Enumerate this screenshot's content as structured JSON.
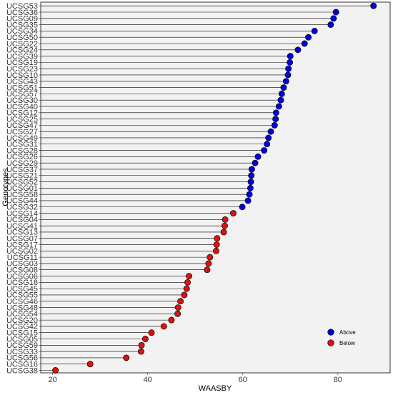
{
  "chart_data": {
    "type": "scatter",
    "style": "lollipop",
    "xlabel": "WAASBY",
    "ylabel": "Genotypes",
    "xlim": [
      17.5,
      91
    ],
    "x_ticks": [
      20,
      40,
      60,
      80
    ],
    "grid": false,
    "legend_position": "bottom-right",
    "colors": {
      "Above": "#0000dd",
      "Below": "#dd1111"
    },
    "series": [
      {
        "name": "Above",
        "points": [
          {
            "genotype": "UCSG53",
            "value": 87.5
          },
          {
            "genotype": "UCSG36",
            "value": 79.6
          },
          {
            "genotype": "UCSG09",
            "value": 79.1
          },
          {
            "genotype": "UCSG35",
            "value": 78.5
          },
          {
            "genotype": "UCSG34",
            "value": 75.1
          },
          {
            "genotype": "UCSG50",
            "value": 73.8
          },
          {
            "genotype": "UCSG22",
            "value": 73.0
          },
          {
            "genotype": "UCSG24",
            "value": 71.6
          },
          {
            "genotype": "UCSG39",
            "value": 70.0
          },
          {
            "genotype": "UCSG19",
            "value": 69.9
          },
          {
            "genotype": "UCSG23",
            "value": 69.6
          },
          {
            "genotype": "UCSG10",
            "value": 69.5
          },
          {
            "genotype": "UCSG43",
            "value": 69.1
          },
          {
            "genotype": "UCSG51",
            "value": 68.6
          },
          {
            "genotype": "UCSG57",
            "value": 68.2
          },
          {
            "genotype": "UCSG30",
            "value": 68.0
          },
          {
            "genotype": "UCSG40",
            "value": 67.6
          },
          {
            "genotype": "UCSG12",
            "value": 67.0
          },
          {
            "genotype": "UCSG25",
            "value": 66.9
          },
          {
            "genotype": "UCSG47",
            "value": 66.7
          },
          {
            "genotype": "UCSG27",
            "value": 65.9
          },
          {
            "genotype": "UCSG49",
            "value": 65.4
          },
          {
            "genotype": "UCSG31",
            "value": 65.1
          },
          {
            "genotype": "UCSG28",
            "value": 64.5
          },
          {
            "genotype": "UCSG26",
            "value": 63.2
          },
          {
            "genotype": "UCSG29",
            "value": 62.6
          },
          {
            "genotype": "UCSG37",
            "value": 61.9
          },
          {
            "genotype": "UCSG21",
            "value": 61.8
          },
          {
            "genotype": "UCSG52",
            "value": 61.7
          },
          {
            "genotype": "UCSG01",
            "value": 61.6
          },
          {
            "genotype": "UCSG58",
            "value": 61.4
          },
          {
            "genotype": "UCSG44",
            "value": 61.1
          },
          {
            "genotype": "UCSG32",
            "value": 59.9
          }
        ]
      },
      {
        "name": "Below",
        "points": [
          {
            "genotype": "UCSG14",
            "value": 58.0
          },
          {
            "genotype": "UCSG04",
            "value": 56.3
          },
          {
            "genotype": "UCSG41",
            "value": 56.2
          },
          {
            "genotype": "UCSG13",
            "value": 56.0
          },
          {
            "genotype": "UCSG07",
            "value": 54.6
          },
          {
            "genotype": "UCSG17",
            "value": 54.5
          },
          {
            "genotype": "UCSG02",
            "value": 54.4
          },
          {
            "genotype": "UCSG11",
            "value": 53.1
          },
          {
            "genotype": "UCSG03",
            "value": 52.8
          },
          {
            "genotype": "UCSG08",
            "value": 52.5
          },
          {
            "genotype": "UCSG06",
            "value": 48.7
          },
          {
            "genotype": "UCSG18",
            "value": 48.4
          },
          {
            "genotype": "UCSG45",
            "value": 48.2
          },
          {
            "genotype": "UCSG55",
            "value": 47.7
          },
          {
            "genotype": "UCSG46",
            "value": 46.9
          },
          {
            "genotype": "UCSG48",
            "value": 46.4
          },
          {
            "genotype": "UCSG54",
            "value": 46.3
          },
          {
            "genotype": "UCSG20",
            "value": 45.0
          },
          {
            "genotype": "UCSG42",
            "value": 43.4
          },
          {
            "genotype": "UCSG15",
            "value": 40.8
          },
          {
            "genotype": "UCSG05",
            "value": 39.5
          },
          {
            "genotype": "UCSG59",
            "value": 38.7
          },
          {
            "genotype": "UCSG33",
            "value": 38.6
          },
          {
            "genotype": "UCSG56",
            "value": 35.5
          },
          {
            "genotype": "UCSG16",
            "value": 27.9
          },
          {
            "genotype": "UCSG38",
            "value": 20.6
          }
        ]
      }
    ]
  }
}
